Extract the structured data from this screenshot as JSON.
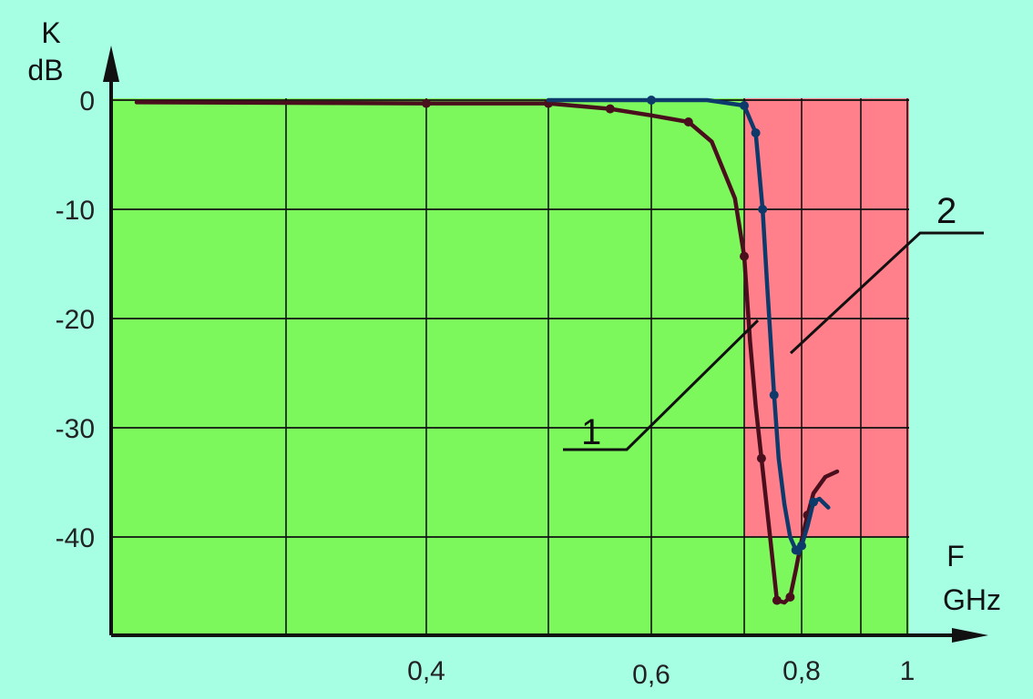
{
  "chart_data": {
    "type": "line",
    "title": "",
    "y_axis": {
      "label_line1": "K",
      "label_line2": "dB",
      "ticks": [
        {
          "value": 0,
          "label": "0"
        },
        {
          "value": -10,
          "label": "-10"
        },
        {
          "value": -20,
          "label": "-20"
        },
        {
          "value": -30,
          "label": "-30"
        },
        {
          "value": -40,
          "label": "-40"
        }
      ],
      "range": [
        -47,
        0
      ]
    },
    "x_axis": {
      "label_line1": "F",
      "label_line2": "GHz",
      "ticks": [
        {
          "value": 0.4,
          "label": "0,4"
        },
        {
          "value": 0.6,
          "label": "0,6"
        },
        {
          "value": 0.8,
          "label": "0,8"
        },
        {
          "value": 1.0,
          "label": "1"
        }
      ]
    },
    "grid": true,
    "colors": {
      "background": "#a6ffe3",
      "passband": "#7cf75c",
      "stopband": "#ff7f8a",
      "curve_1": "#4a0f1c",
      "curve_2": "#0d3a6b",
      "grid": "#111111"
    },
    "series": [
      {
        "name": "1",
        "points": [
          [
            0.2,
            -0.2
          ],
          [
            0.4,
            -0.3
          ],
          [
            0.5,
            -0.3
          ],
          [
            0.56,
            -0.8
          ],
          [
            0.6,
            -1.4
          ],
          [
            0.64,
            -2.0
          ],
          [
            0.665,
            -3.8
          ],
          [
            0.69,
            -9.0
          ],
          [
            0.7,
            -14.3
          ],
          [
            0.71,
            -22.0
          ],
          [
            0.72,
            -28.0
          ],
          [
            0.73,
            -32.8
          ],
          [
            0.745,
            -40.0
          ],
          [
            0.757,
            -45.8
          ],
          [
            0.77,
            -46.0
          ],
          [
            0.78,
            -45.5
          ],
          [
            0.79,
            -43.0
          ],
          [
            0.8,
            -40.3
          ],
          [
            0.81,
            -38.0
          ],
          [
            0.82,
            -36.0
          ],
          [
            0.84,
            -34.5
          ],
          [
            0.86,
            -34.0
          ]
        ],
        "label": "1"
      },
      {
        "name": "2",
        "points": [
          [
            0.5,
            0.0
          ],
          [
            0.55,
            0.0
          ],
          [
            0.6,
            0.0
          ],
          [
            0.66,
            0.0
          ],
          [
            0.7,
            -0.5
          ],
          [
            0.72,
            -3.0
          ],
          [
            0.732,
            -10.0
          ],
          [
            0.74,
            -17.0
          ],
          [
            0.752,
            -27.0
          ],
          [
            0.76,
            -32.8
          ],
          [
            0.77,
            -37.0
          ],
          [
            0.78,
            -40.0
          ],
          [
            0.79,
            -41.2
          ],
          [
            0.795,
            -41.5
          ],
          [
            0.8,
            -40.8
          ],
          [
            0.81,
            -39.0
          ],
          [
            0.82,
            -36.8
          ],
          [
            0.83,
            -36.5
          ],
          [
            0.845,
            -37.3
          ]
        ],
        "label": "2"
      }
    ]
  }
}
